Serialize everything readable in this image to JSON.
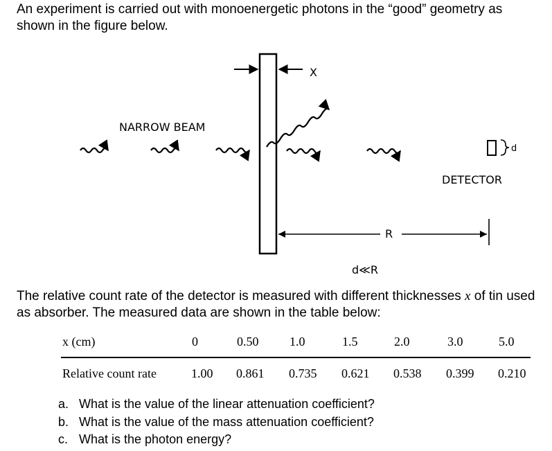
{
  "intro_text": "An experiment is carried out with monoenergetic photons in the “good” geometry as shown in the figure below.",
  "figure": {
    "beam_label": "NARROW BEAM",
    "absorber_label": "X",
    "detector_label": "DETECTOR",
    "detector_size_label": "d",
    "distance_label": "R",
    "condition_label": "d≪R"
  },
  "mid_text": {
    "part1": "The relative count rate of the detector is measured with different thicknesses ",
    "var": "x",
    "part2": " of tin used as absorber. The measured data are shown in the table below:"
  },
  "table": {
    "header_label": "x (cm)",
    "thickness_values": [
      "0",
      "0.50",
      "1.0",
      "1.5",
      "2.0",
      "3.0",
      "5.0"
    ],
    "row_label": "Relative count rate",
    "count_rates": [
      "1.00",
      "0.861",
      "0.735",
      "0.621",
      "0.538",
      "0.399",
      "0.210"
    ]
  },
  "questions": [
    {
      "letter": "a.",
      "text": "What is the value of the linear attenuation coefficient?"
    },
    {
      "letter": "b.",
      "text": "What is the value of the mass attenuation coefficient?"
    },
    {
      "letter": "c.",
      "text": "What is the photon energy?"
    }
  ]
}
